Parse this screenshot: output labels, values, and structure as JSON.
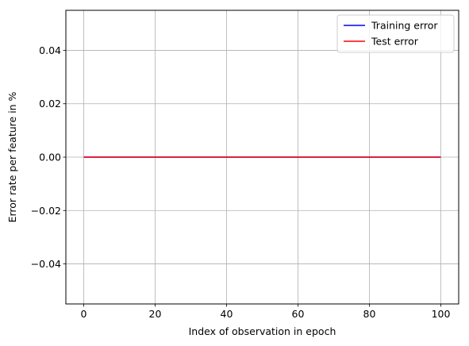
{
  "chart_data": {
    "type": "line",
    "title": "",
    "xlabel": "Index of observation in epoch",
    "ylabel": "Error rate per feature in %",
    "xlim": [
      -5,
      105
    ],
    "ylim": [
      -0.055,
      0.055
    ],
    "x_ticks": [
      0,
      20,
      40,
      60,
      80,
      100
    ],
    "x_tick_labels": [
      "0",
      "20",
      "40",
      "60",
      "80",
      "100"
    ],
    "y_ticks": [
      0.04,
      0.02,
      0.0,
      -0.02,
      -0.04
    ],
    "y_tick_labels": [
      "0.04",
      "0.02",
      "0.00",
      "−0.02",
      "−0.04"
    ],
    "grid": true,
    "legend_position": "top-right",
    "series": [
      {
        "name": "Training error",
        "color": "#0000ff",
        "x": [
          0,
          100
        ],
        "y": [
          0,
          0
        ]
      },
      {
        "name": "Test error",
        "color": "#ff0000",
        "x": [
          0,
          100
        ],
        "y": [
          0,
          0
        ]
      }
    ]
  }
}
